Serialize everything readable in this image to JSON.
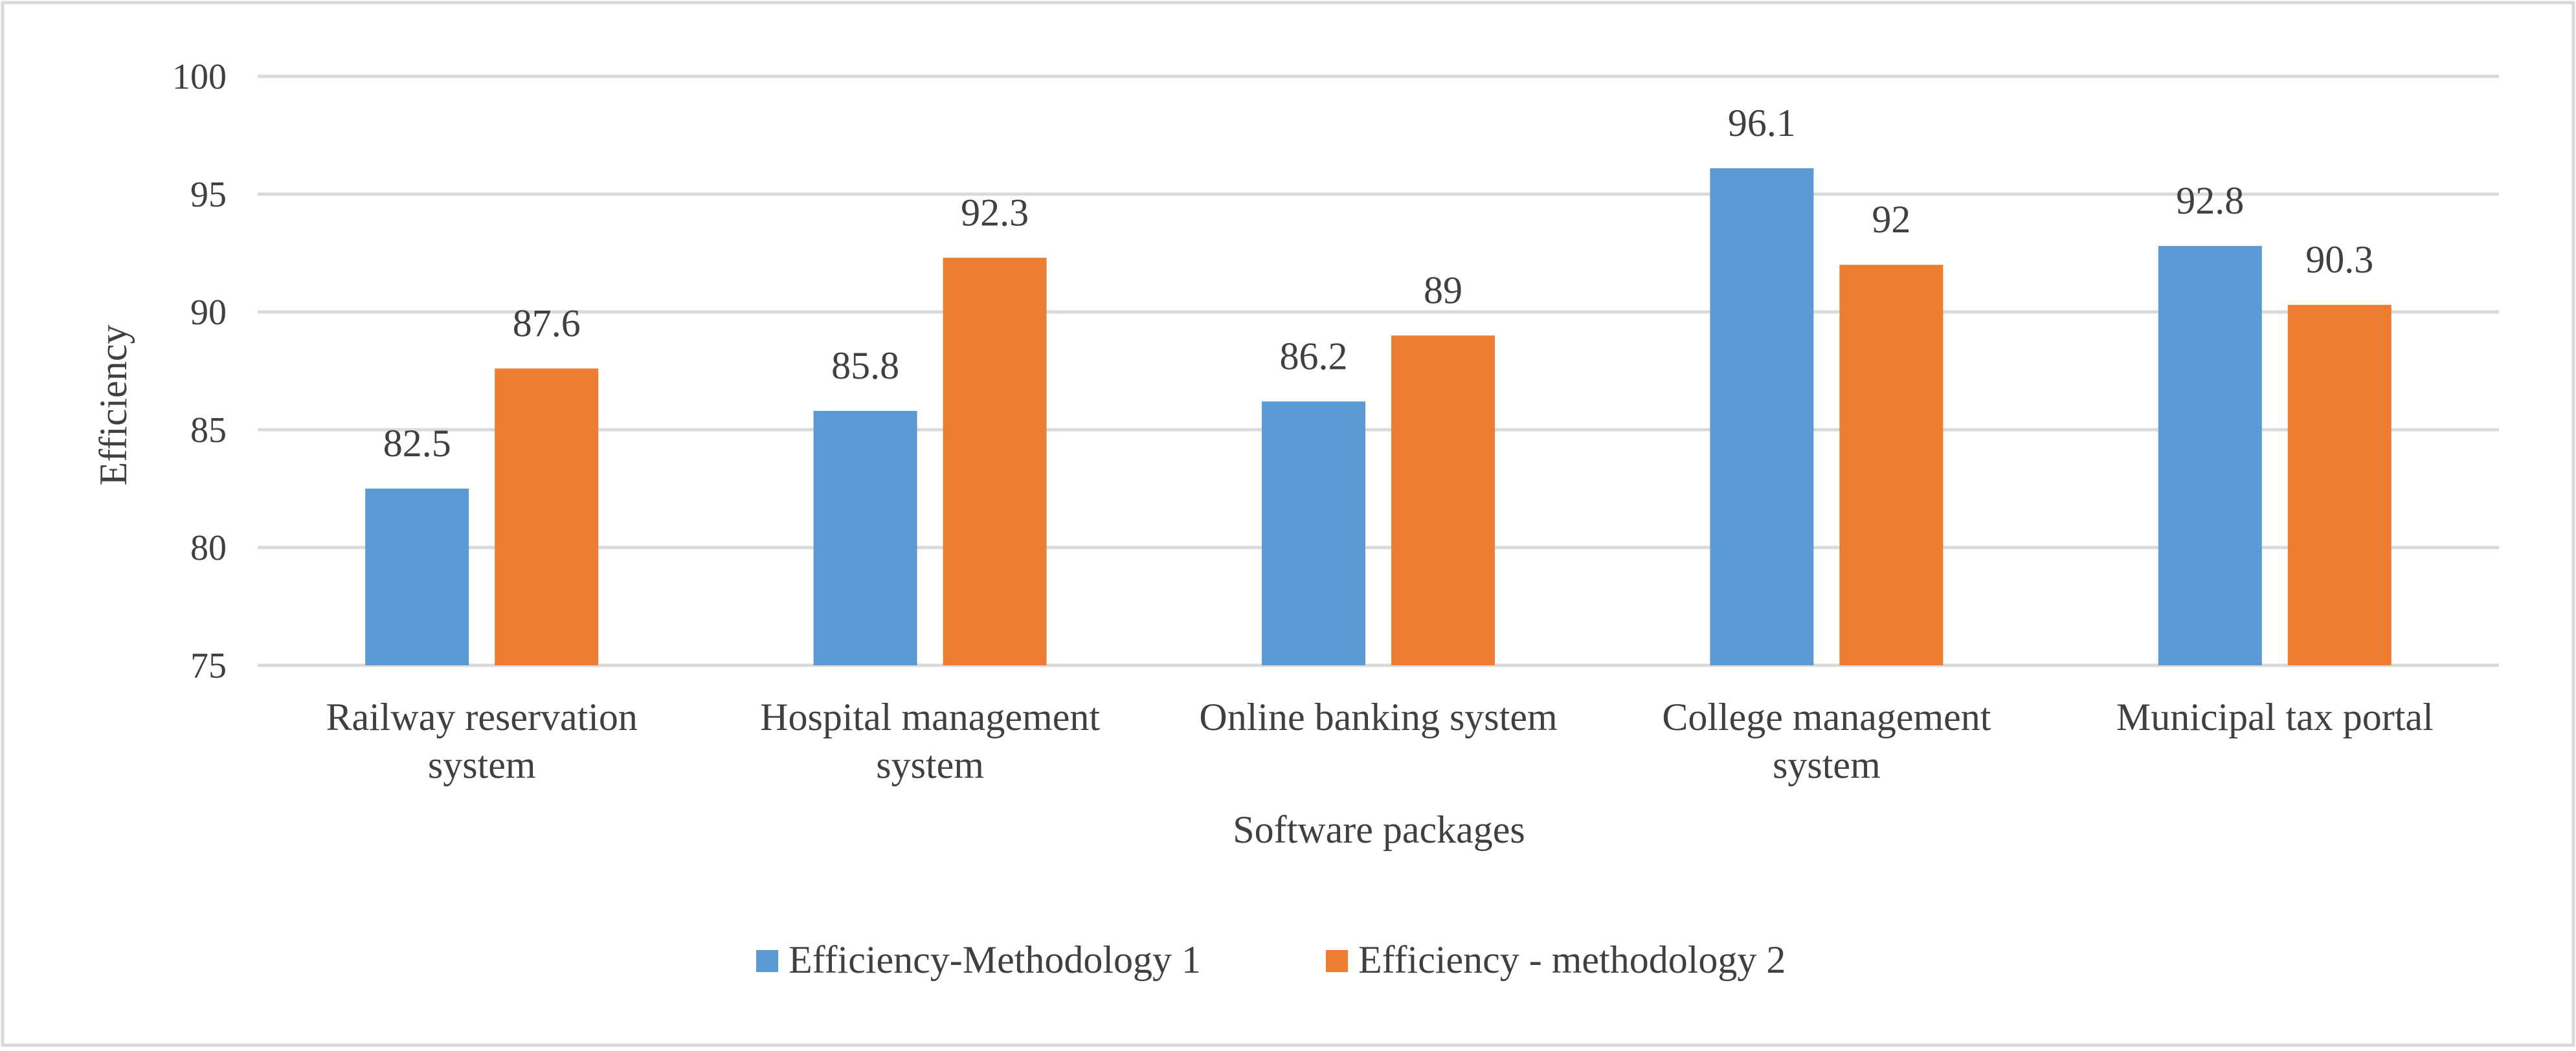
{
  "chart_data": {
    "type": "bar",
    "title": "",
    "xlabel": "Software packages",
    "ylabel": "Efficiency",
    "ylim": [
      75,
      100
    ],
    "yticks": [
      75,
      80,
      85,
      90,
      95,
      100
    ],
    "grid": true,
    "legend_position": "bottom",
    "categories": [
      [
        "Railway reservation",
        "system"
      ],
      [
        "Hospital management",
        "system"
      ],
      [
        "Online banking system"
      ],
      [
        "College management",
        "system"
      ],
      [
        "Municipal tax portal"
      ]
    ],
    "series": [
      {
        "name": "Efficiency-Methodology 1",
        "color": "#5B9BD5",
        "values": [
          82.5,
          85.8,
          86.2,
          96.1,
          92.8
        ]
      },
      {
        "name": "Efficiency - methodology 2",
        "color": "#ED7D31",
        "values": [
          87.6,
          92.3,
          89,
          92,
          90.3
        ]
      }
    ],
    "colors": {
      "gridline": "#D9D9D9",
      "text": "#404040",
      "border": "#D9D9D9"
    }
  }
}
